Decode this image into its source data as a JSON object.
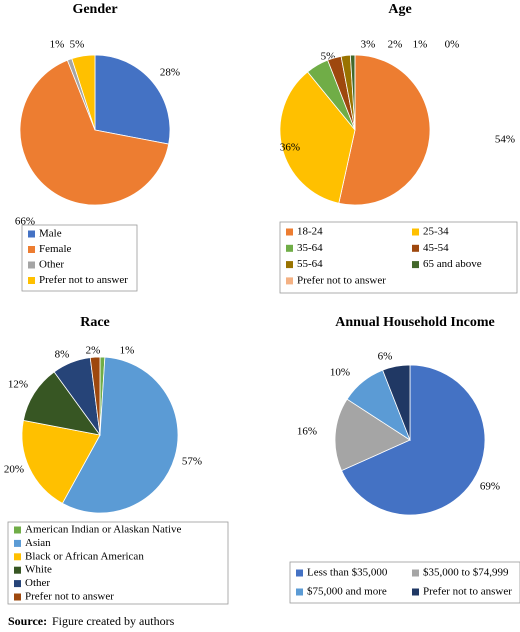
{
  "chart_data": [
    {
      "type": "pie",
      "title": "Gender",
      "categories": [
        "Male",
        "Female",
        "Other",
        "Prefer not to answer"
      ],
      "values": [
        28,
        66,
        1,
        5
      ],
      "value_labels": [
        "28%",
        "66%",
        "1%",
        "5%"
      ],
      "colors": [
        "#4472c4",
        "#ed7d31",
        "#a5a5a5",
        "#ffc000"
      ]
    },
    {
      "type": "pie",
      "title": "Age",
      "categories": [
        "18-24",
        "25-34",
        "35-64",
        "45-54",
        "55-64",
        "65 and above",
        "Prefer not to answer"
      ],
      "values": [
        54,
        36,
        5,
        3,
        2,
        1,
        0
      ],
      "value_labels": [
        "54%",
        "36%",
        "5%",
        "3%",
        "2%",
        "1%",
        "0%"
      ],
      "colors": [
        "#ed7d31",
        "#ffc000",
        "#70ad47",
        "#9e480e",
        "#997300",
        "#43682b",
        "#f4b183"
      ]
    },
    {
      "type": "pie",
      "title": "Race",
      "categories": [
        "American Indian or Alaskan Native",
        "Asian",
        "Black or African American",
        "White",
        "Other",
        "Prefer not to answer"
      ],
      "values": [
        1,
        57,
        20,
        12,
        8,
        2
      ],
      "value_labels": [
        "1%",
        "57%",
        "20%",
        "12%",
        "8%",
        "2%"
      ],
      "colors": [
        "#70ad47",
        "#5b9bd5",
        "#ffc000",
        "#375623",
        "#264478",
        "#9e480e"
      ]
    },
    {
      "type": "pie",
      "title": "Annual Household Income",
      "categories": [
        "Less than $35,000",
        "$35,000 to $74,999",
        "$75,000 and more",
        "Prefer not to answer"
      ],
      "values": [
        69,
        16,
        10,
        6
      ],
      "value_labels": [
        "69%",
        "16%",
        "10%",
        "6%"
      ],
      "colors": [
        "#4472c4",
        "#a5a5a5",
        "#5b9bd5",
        "#203864"
      ]
    }
  ],
  "source": {
    "label": "Source:",
    "text": "Figure created by authors"
  }
}
